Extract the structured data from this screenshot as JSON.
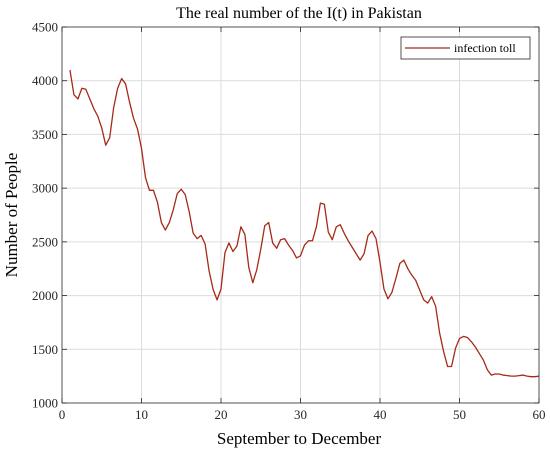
{
  "chart_data": {
    "type": "line",
    "title": "The real number of the I(t) in Pakistan",
    "xlabel": "September to December",
    "ylabel": "Number of People",
    "xlim": [
      0,
      60
    ],
    "ylim": [
      1000,
      4500
    ],
    "xticks": [
      0,
      10,
      20,
      30,
      40,
      50,
      60
    ],
    "yticks": [
      1000,
      1500,
      2000,
      2500,
      3000,
      3500,
      4000,
      4500
    ],
    "grid": true,
    "legend_position": "top-right",
    "colors": {
      "line": "#a52a18",
      "grid": "#dcdcdc",
      "axes": "#262626"
    },
    "series": [
      {
        "name": "infection toll",
        "x": [
          1,
          1.5,
          2,
          2.5,
          3,
          3.5,
          4,
          4.5,
          5,
          5.5,
          6,
          6.5,
          7,
          7.5,
          8,
          8.5,
          9,
          9.5,
          10,
          10.5,
          11,
          11.5,
          12,
          12.5,
          13,
          13.5,
          14,
          14.5,
          15,
          15.5,
          16,
          16.5,
          17,
          17.5,
          18,
          18.5,
          19,
          19.5,
          20,
          20.5,
          21,
          21.5,
          22,
          22.5,
          23,
          23.5,
          24,
          24.5,
          25,
          25.5,
          26,
          26.5,
          27,
          27.5,
          28,
          28.5,
          29,
          29.5,
          30,
          30.5,
          31,
          31.5,
          32,
          32.5,
          33,
          33.5,
          34,
          34.5,
          35,
          35.5,
          36,
          36.5,
          37,
          37.5,
          38,
          38.5,
          39,
          39.5,
          40,
          40.5,
          41,
          41.5,
          42,
          42.5,
          43,
          43.5,
          44,
          44.5,
          45,
          45.5,
          46,
          46.5,
          47,
          47.5,
          48,
          48.5,
          49,
          49.5,
          50,
          50.5,
          51,
          51.5,
          52,
          52.5,
          53,
          53.5,
          54,
          54.5,
          55,
          55.5,
          56,
          56.5,
          57,
          57.5,
          58,
          58.5,
          59,
          59.5,
          60
        ],
        "y": [
          4100,
          3870,
          3830,
          3930,
          3920,
          3830,
          3740,
          3670,
          3560,
          3400,
          3470,
          3750,
          3930,
          4020,
          3970,
          3800,
          3650,
          3550,
          3370,
          3100,
          2980,
          2980,
          2870,
          2680,
          2610,
          2680,
          2800,
          2950,
          2990,
          2940,
          2780,
          2580,
          2530,
          2560,
          2480,
          2230,
          2060,
          1960,
          2060,
          2400,
          2490,
          2410,
          2460,
          2640,
          2570,
          2260,
          2120,
          2240,
          2430,
          2650,
          2680,
          2490,
          2440,
          2520,
          2530,
          2470,
          2420,
          2350,
          2370,
          2470,
          2510,
          2510,
          2640,
          2860,
          2850,
          2590,
          2520,
          2640,
          2660,
          2580,
          2510,
          2450,
          2390,
          2330,
          2390,
          2560,
          2600,
          2530,
          2310,
          2060,
          1970,
          2030,
          2160,
          2300,
          2330,
          2250,
          2190,
          2140,
          2050,
          1960,
          1930,
          1990,
          1900,
          1650,
          1480,
          1340,
          1340,
          1510,
          1600,
          1620,
          1610,
          1570,
          1520,
          1460,
          1400,
          1310,
          1260,
          1270,
          1270,
          1260,
          1255,
          1250,
          1250,
          1255,
          1260,
          1250,
          1245,
          1245,
          1250
        ]
      }
    ]
  }
}
